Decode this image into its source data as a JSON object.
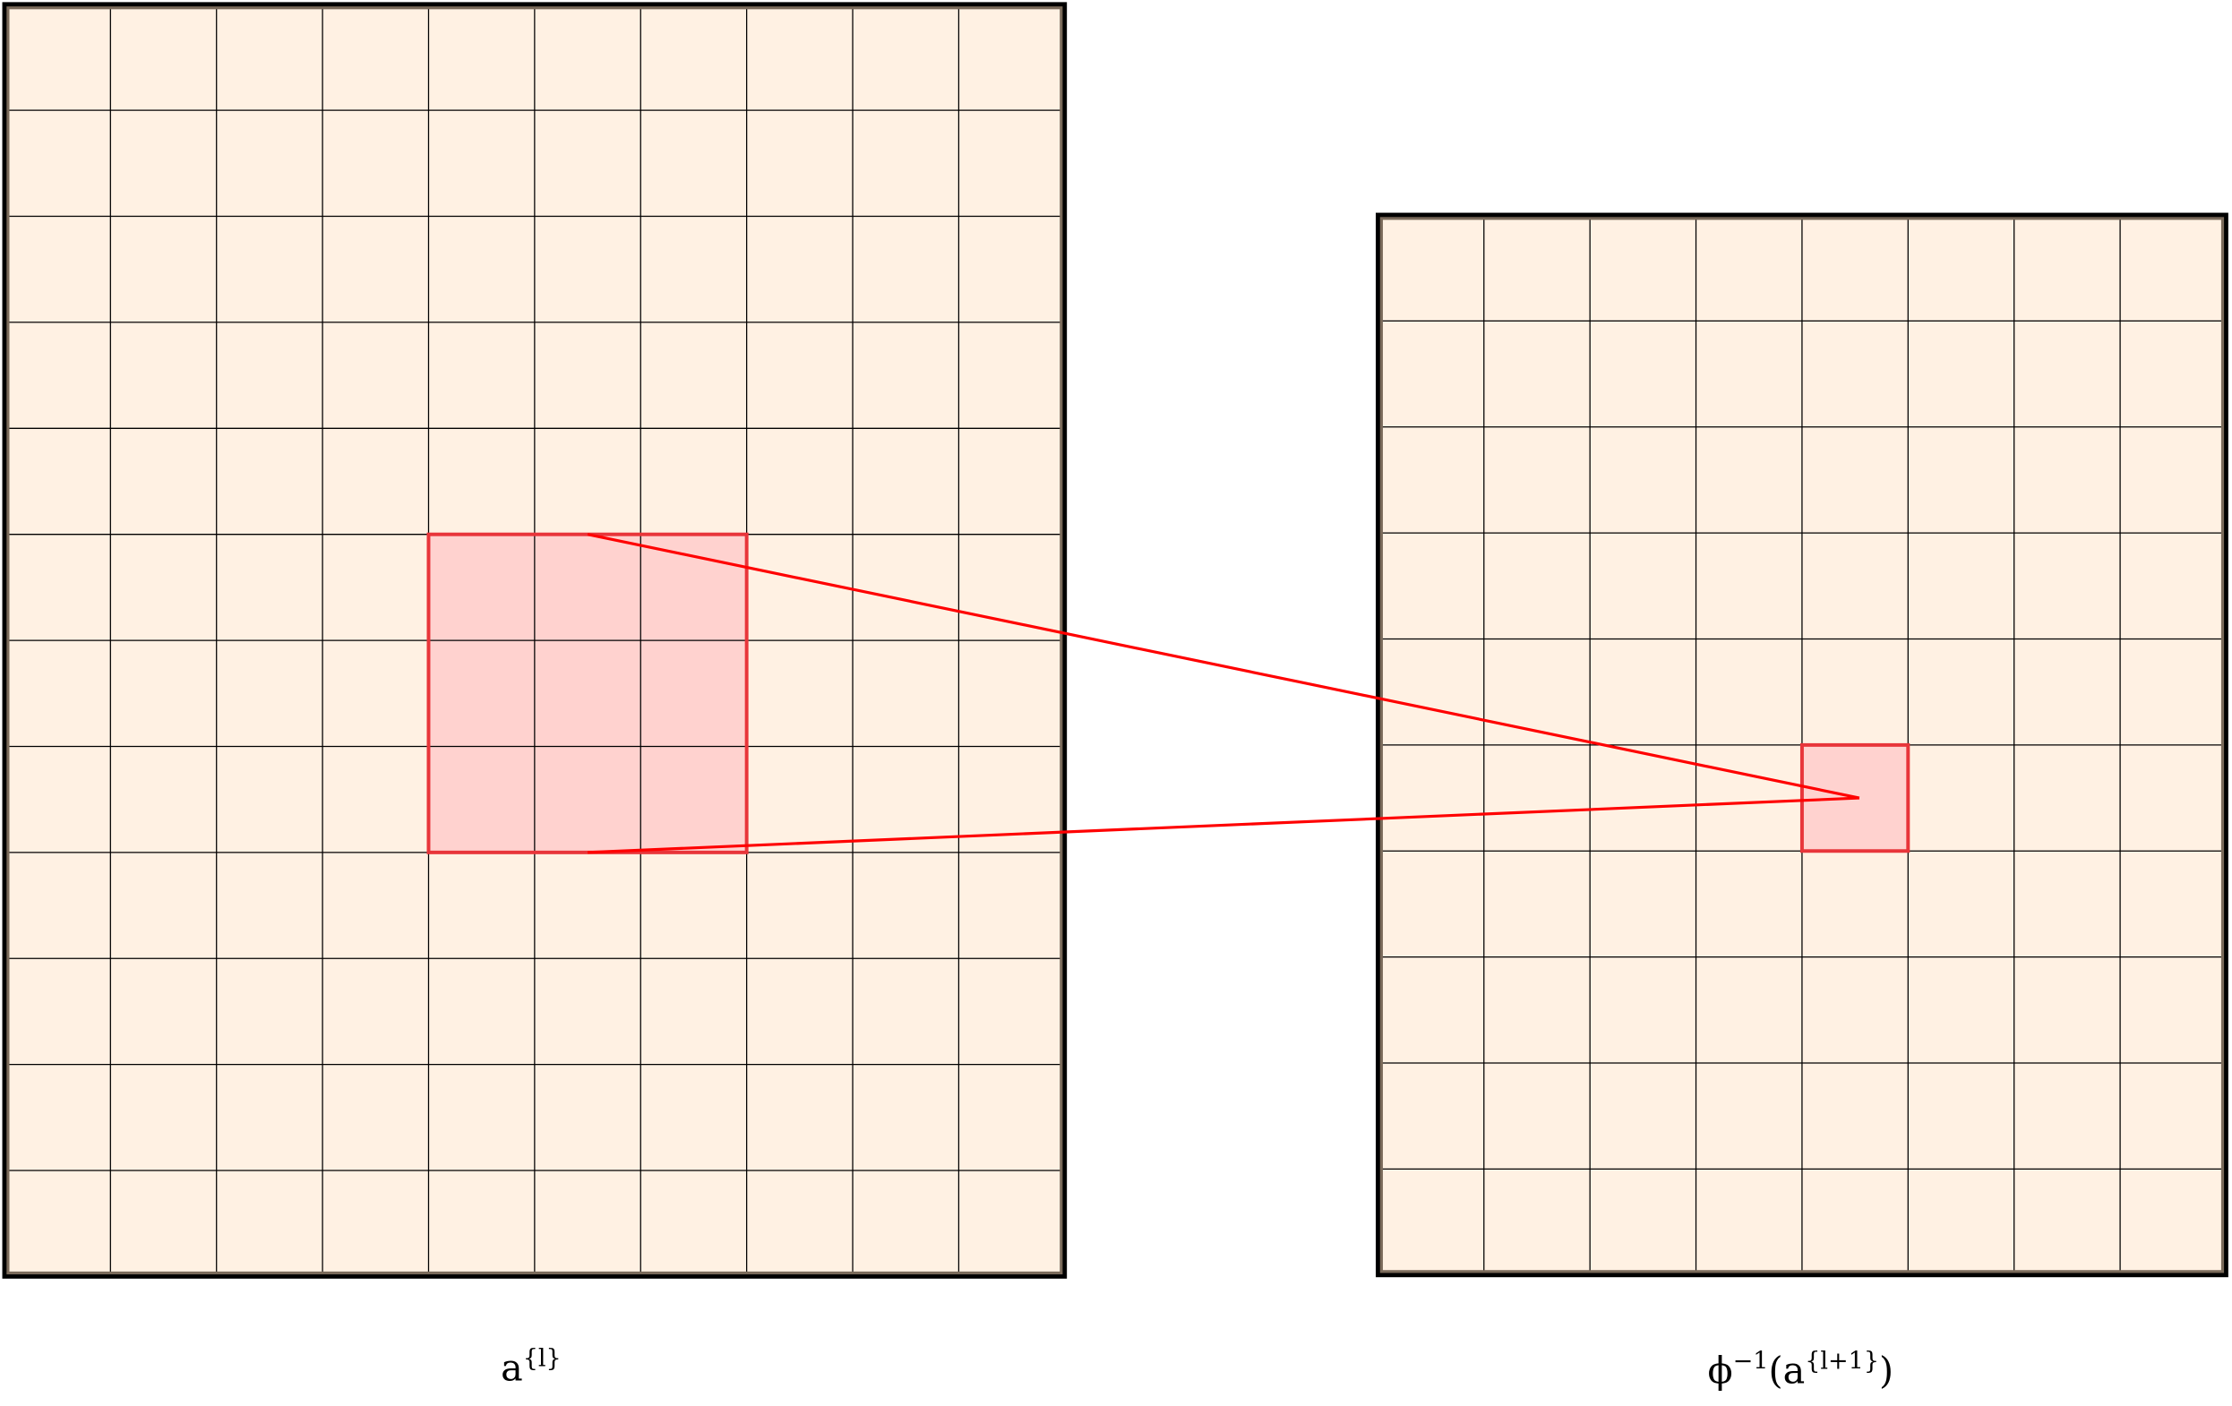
{
  "colors": {
    "grid_fill": "#fff1e3",
    "grid_line": "#000000",
    "border": "#000000",
    "highlight_fill": "#ffd2cf",
    "highlight_stroke": "#e8353a",
    "connector": "#ff0000"
  },
  "left_grid": {
    "columns": 10,
    "rows": 12,
    "highlight": {
      "col_start": 4,
      "row_start": 5,
      "cols": 3,
      "rows": 3
    },
    "label": {
      "base": "a",
      "superscript": "{l}"
    }
  },
  "right_grid": {
    "columns": 8,
    "rows": 10,
    "highlight": {
      "col_start": 4,
      "row_start": 5,
      "cols": 1,
      "rows": 1
    },
    "label": {
      "func": "ϕ",
      "func_sup": "−1",
      "open": "(",
      "base": "a",
      "superscript": "{l+1}",
      "close": ")"
    }
  }
}
